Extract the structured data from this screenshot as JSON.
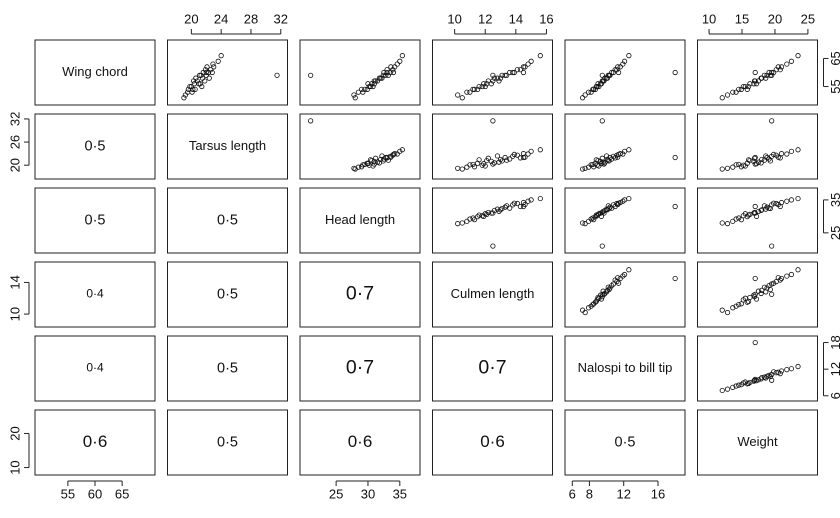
{
  "chart_data": {
    "type": "scatter-matrix",
    "variables": [
      {
        "name": "Wing chord",
        "lim": [
          49.5,
          70.5
        ],
        "xticks": [
          55,
          60,
          65
        ],
        "yticks": [
          55,
          65
        ],
        "values": [
          54,
          56,
          58,
          60,
          55,
          57,
          62,
          53,
          59,
          56,
          64,
          52,
          58,
          61,
          54,
          57,
          60,
          55,
          63,
          51,
          59,
          56,
          66,
          58,
          53,
          61,
          57,
          55,
          60,
          62,
          54,
          59,
          59,
          60
        ]
      },
      {
        "name": "Tarsus length",
        "lim": [
          17.2,
          32.5
        ],
        "xticks": [
          20,
          24,
          28,
          32
        ],
        "yticks": [
          20,
          26,
          32
        ],
        "values": [
          20.2,
          21.0,
          21.5,
          22.3,
          20.0,
          20.8,
          23.0,
          19.5,
          22.0,
          21.2,
          23.6,
          19.2,
          20.6,
          22.6,
          20.5,
          21.8,
          21.6,
          19.8,
          22.9,
          19.0,
          21.3,
          20.4,
          24.0,
          22.4,
          20.1,
          21.9,
          20.3,
          21.4,
          22.8,
          22.1,
          19.6,
          21.1,
          31.5,
          22.0
        ]
      },
      {
        "name": "Head length",
        "lim": [
          19.8,
          37.7
        ],
        "xticks": [
          25,
          30,
          35
        ],
        "yticks": [
          25,
          35
        ],
        "values": [
          29.5,
          31.0,
          32.0,
          33.5,
          30.2,
          31.5,
          34.2,
          28.5,
          32.8,
          30.6,
          35.0,
          27.8,
          31.8,
          33.9,
          29.9,
          31.2,
          32.5,
          30.8,
          34.6,
          28.0,
          33.2,
          30.0,
          35.4,
          32.2,
          29.2,
          33.0,
          31.0,
          30.4,
          34.0,
          33.6,
          29.0,
          32.4,
          21,
          33
        ]
      },
      {
        "name": "Culmen length",
        "lim": [
          8.75,
          16.2
        ],
        "xticks": [
          10,
          12,
          14,
          16
        ],
        "yticks": [
          10,
          14
        ],
        "values": [
          11.2,
          12.4,
          13.0,
          13.8,
          11.8,
          12.9,
          14.5,
          10.8,
          13.3,
          12.1,
          15.0,
          10.2,
          12.6,
          14.1,
          11.5,
          12.2,
          13.6,
          12.0,
          14.8,
          10.5,
          13.4,
          11.9,
          15.6,
          12.8,
          11.0,
          14.3,
          12.5,
          11.6,
          13.9,
          14.6,
          11.3,
          13.1,
          12.5,
          14.5
        ]
      },
      {
        "name": "Nalospi to bill tip",
        "lim": [
          5.5,
          18.8
        ],
        "xticks": [
          6,
          8,
          12,
          16
        ],
        "yticks": [
          6,
          12,
          18
        ],
        "values": [
          8.4,
          9.3,
          10.1,
          10.8,
          8.9,
          9.6,
          11.6,
          7.9,
          10.4,
          9.0,
          12.1,
          7.5,
          9.8,
          11.2,
          8.7,
          9.5,
          10.6,
          9.1,
          11.9,
          7.2,
          10.2,
          9.4,
          12.6,
          10.0,
          8.2,
          11.0,
          9.7,
          8.8,
          11.4,
          11.3,
          8.5,
          10.3,
          9.5,
          18
        ]
      },
      {
        "name": "Weight",
        "lim": [
          8.7,
          26
        ],
        "xticks": [
          10,
          15,
          20,
          25
        ],
        "yticks": [
          10,
          20
        ],
        "values": [
          14.5,
          16.8,
          18.0,
          19.5,
          15.2,
          17.5,
          21.0,
          13.6,
          18.8,
          16.2,
          22.5,
          12.8,
          17.9,
          20.2,
          15.8,
          16.9,
          19.1,
          15.5,
          21.8,
          12.0,
          18.4,
          17.2,
          23.5,
          18.6,
          14.1,
          20.8,
          17.0,
          16.0,
          19.8,
          20.5,
          14.9,
          19.3,
          19.5,
          17
        ]
      }
    ],
    "correlations": [
      [
        0.5
      ],
      [
        0.5,
        0.5
      ],
      [
        0.4,
        0.5,
        0.7
      ],
      [
        0.4,
        0.5,
        0.7,
        0.7
      ],
      [
        0.6,
        0.5,
        0.6,
        0.6,
        0.5
      ]
    ],
    "correlation_labels": [
      [
        "0·5"
      ],
      [
        "0·5",
        "0·5"
      ],
      [
        "0·4",
        "0·5",
        "0·7"
      ],
      [
        "0·4",
        "0·5",
        "0·7",
        "0·7"
      ],
      [
        "0·6",
        "0·5",
        "0·6",
        "0·6",
        "0·5"
      ]
    ]
  }
}
